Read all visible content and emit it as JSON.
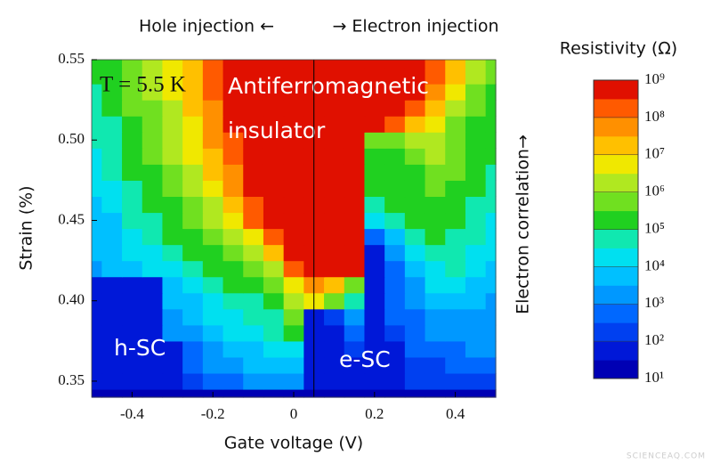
{
  "chart_data": {
    "type": "heatmap",
    "title_left": "Hole injection ←",
    "title_right": "→ Electron injection",
    "x_label": "Gate voltage (V)",
    "y_label": "Strain (%)",
    "right_label": "Electron correlation→",
    "annotations": [
      "T = 5.5 K",
      "Antiferromagnetic",
      "insulator",
      "h-SC",
      "e-SC"
    ],
    "watermark": "SCIENCEAQ.COM",
    "xlim": [
      -0.5,
      0.5
    ],
    "ylim": [
      0.34,
      0.55
    ],
    "xticks": [
      -0.4,
      -0.2,
      0,
      0.2,
      0.4
    ],
    "yticks": [
      0.35,
      {
        "value": 0.4,
        "label": "0.40"
      },
      0.45,
      {
        "value": 0.5,
        "label": "0.50"
      },
      0.55
    ],
    "vline": 0.05,
    "x": [
      -0.5,
      -0.45,
      -0.4,
      -0.35,
      -0.3,
      -0.25,
      -0.2,
      -0.15,
      -0.1,
      -0.05,
      0,
      0.05,
      0.1,
      0.15,
      0.2,
      0.25,
      0.3,
      0.35,
      0.4,
      0.45,
      0.5
    ],
    "y": [
      0.34,
      0.35,
      0.36,
      0.37,
      0.38,
      0.39,
      0.4,
      0.41,
      0.42,
      0.43,
      0.44,
      0.45,
      0.46,
      0.47,
      0.48,
      0.49,
      0.5,
      0.51,
      0.52,
      0.53,
      0.54,
      0.55
    ],
    "z": [
      [
        15,
        15,
        15,
        15,
        15,
        15,
        15,
        15,
        15,
        15,
        15,
        15,
        15,
        15,
        15,
        15,
        15,
        15,
        15,
        15,
        15
      ],
      [
        50,
        50,
        50,
        50,
        50,
        150,
        500,
        500,
        1500,
        1500,
        1500,
        50,
        50,
        50,
        50,
        50,
        150,
        150,
        150,
        150,
        150
      ],
      [
        50,
        50,
        50,
        50,
        50,
        500,
        1500,
        1500,
        5000,
        5000,
        5000,
        50,
        50,
        50,
        50,
        50,
        150,
        150,
        500,
        500,
        500
      ],
      [
        50,
        50,
        50,
        50,
        50,
        500,
        1500,
        5000,
        5000,
        15000,
        15000,
        50,
        50,
        150,
        50,
        50,
        500,
        500,
        500,
        1500,
        1500
      ],
      [
        50,
        50,
        50,
        50,
        1500,
        1500,
        5000,
        15000,
        15000,
        50000,
        150000,
        50,
        50,
        500,
        50,
        150,
        500,
        1500,
        1500,
        1500,
        1500
      ],
      [
        50,
        50,
        50,
        50,
        1500,
        5000,
        15000,
        15000,
        50000,
        50000,
        500000,
        50,
        150,
        1500,
        50,
        500,
        500,
        1500,
        1500,
        1500,
        1500
      ],
      [
        50,
        50,
        50,
        50,
        5000,
        5000,
        15000,
        50000,
        50000,
        150000,
        1500000.0,
        5000000.0,
        500000,
        50000,
        50,
        500,
        1500,
        5000,
        5000,
        5000,
        1500
      ],
      [
        50,
        50,
        50,
        50,
        5000,
        15000,
        50000,
        150000,
        150000,
        500000,
        5000000.0,
        50000000.0,
        15000000.0,
        500000,
        50,
        500,
        1500,
        15000,
        15000,
        5000,
        5000
      ],
      [
        1500,
        5000,
        5000,
        15000,
        15000,
        50000,
        150000,
        150000,
        500000,
        1500000.0,
        150000000.0,
        500000000.0,
        500000000.0,
        500000000.0,
        50,
        500,
        5000,
        15000,
        50000,
        15000,
        5000
      ],
      [
        5000,
        5000,
        15000,
        15000,
        50000,
        150000,
        150000,
        500000,
        1500000.0,
        15000000.0,
        500000000.0,
        500000000.0,
        500000000.0,
        500000000.0,
        50,
        1500,
        15000,
        50000,
        50000,
        15000,
        15000
      ],
      [
        5000,
        5000,
        15000,
        50000,
        150000,
        150000,
        500000,
        1500000.0,
        5000000.0,
        150000000.0,
        500000000.0,
        500000000.0,
        500000000.0,
        500000000.0,
        500,
        5000,
        50000,
        150000,
        50000,
        50000,
        15000
      ],
      [
        5000,
        5000,
        50000,
        50000,
        150000,
        500000,
        1500000.0,
        5000000.0,
        150000000.0,
        500000000.0,
        500000000.0,
        500000000.0,
        500000000.0,
        500000000.0,
        15000,
        50000,
        150000,
        150000,
        150000,
        50000,
        15000
      ],
      [
        5000,
        15000,
        50000,
        150000,
        150000,
        500000,
        1500000.0,
        15000000.0,
        150000000.0,
        500000000.0,
        500000000.0,
        500000000.0,
        500000000.0,
        500000000.0,
        50000,
        150000,
        150000,
        150000,
        150000,
        50000,
        50000
      ],
      [
        15000,
        15000,
        50000,
        150000,
        500000,
        1500000.0,
        5000000.0,
        50000000.0,
        500000000.0,
        500000000.0,
        500000000.0,
        500000000.0,
        500000000.0,
        500000000.0,
        150000,
        150000,
        150000,
        500000,
        150000,
        150000,
        50000
      ],
      [
        15000,
        50000,
        150000,
        150000,
        500000,
        1500000.0,
        15000000.0,
        50000000.0,
        500000000.0,
        500000000.0,
        500000000.0,
        500000000.0,
        500000000.0,
        500000000.0,
        150000,
        150000,
        150000,
        500000,
        500000,
        150000,
        50000
      ],
      [
        15000,
        50000,
        150000,
        500000,
        1500000.0,
        5000000.0,
        15000000.0,
        150000000.0,
        500000000.0,
        500000000.0,
        500000000.0,
        500000000.0,
        500000000.0,
        500000000.0,
        150000,
        150000,
        500000,
        1500000.0,
        500000,
        150000,
        150000
      ],
      [
        50000,
        50000,
        150000,
        500000,
        1500000.0,
        5000000.0,
        50000000.0,
        150000000.0,
        500000000.0,
        500000000.0,
        500000000.0,
        500000000.0,
        500000000.0,
        500000000.0,
        500000,
        500000,
        1500000.0,
        1500000.0,
        500000,
        150000,
        150000
      ],
      [
        50000,
        50000,
        150000,
        500000,
        1500000.0,
        5000000.0,
        50000000.0,
        500000000.0,
        500000000.0,
        500000000.0,
        500000000.0,
        500000000.0,
        500000000.0,
        500000000.0,
        500000000.0,
        150000000.0,
        15000000.0,
        5000000.0,
        500000,
        150000,
        150000
      ],
      [
        50000,
        150000,
        500000,
        500000,
        1500000.0,
        15000000.0,
        50000000.0,
        500000000.0,
        500000000.0,
        500000000.0,
        500000000.0,
        500000000.0,
        500000000.0,
        500000000.0,
        500000000.0,
        500000000.0,
        150000000.0,
        15000000.0,
        1500000.0,
        500000,
        150000
      ],
      [
        50000,
        150000,
        500000,
        1500000.0,
        5000000.0,
        15000000.0,
        150000000.0,
        500000000.0,
        500000000.0,
        500000000.0,
        500000000.0,
        500000000.0,
        500000000.0,
        500000000.0,
        500000000.0,
        500000000.0,
        500000000.0,
        50000000.0,
        5000000.0,
        500000,
        150000
      ],
      [
        150000,
        150000,
        500000,
        1500000.0,
        5000000.0,
        15000000.0,
        150000000.0,
        500000000.0,
        500000000.0,
        500000000.0,
        500000000.0,
        500000000.0,
        500000000.0,
        500000000.0,
        500000000.0,
        500000000.0,
        500000000.0,
        150000000.0,
        15000000.0,
        1500000.0,
        500000
      ],
      [
        150000,
        150000,
        500000,
        1500000.0,
        5000000.0,
        15000000.0,
        150000000.0,
        500000000.0,
        500000000.0,
        500000000.0,
        500000000.0,
        500000000.0,
        500000000.0,
        500000000.0,
        500000000.0,
        500000000.0,
        500000000.0,
        150000000.0,
        15000000.0,
        1500000.0,
        500000
      ]
    ],
    "colorbar": {
      "label": "Resistivity (Ω)",
      "log_scale": true,
      "clim": [
        10,
        1000000000.0
      ],
      "colors": [
        "#0000b4",
        "#0018d8",
        "#0040f0",
        "#0068ff",
        "#0098ff",
        "#00c0ff",
        "#00e0f0",
        "#10e8b0",
        "#20d020",
        "#70e020",
        "#b0e820",
        "#f0e800",
        "#ffc000",
        "#ff9000",
        "#ff5a00",
        "#e01000"
      ],
      "ticks": [
        {
          "value": 10,
          "label": "10¹"
        },
        {
          "value": 100,
          "label": "10²"
        },
        {
          "value": 1000,
          "label": "10³"
        },
        {
          "value": 10000,
          "label": "10⁴"
        },
        {
          "value": 100000,
          "label": "10⁵"
        },
        {
          "value": 1000000,
          "label": "10⁶"
        },
        {
          "value": 10000000,
          "label": "10⁷"
        },
        {
          "value": 100000000,
          "label": "10⁸"
        },
        {
          "value": 1000000000,
          "label": "10⁹"
        }
      ]
    }
  }
}
